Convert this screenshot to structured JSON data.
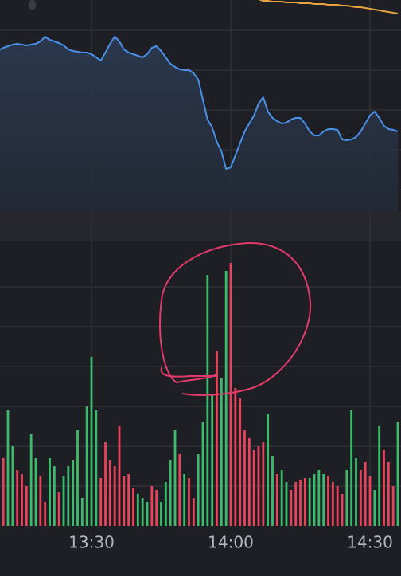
{
  "chart_data": [
    {
      "type": "line",
      "ylim": [
        0,
        265
      ],
      "area_fill": true,
      "series": [
        {
          "color": "#4a90e8",
          "values": [
            202,
            205,
            207,
            209,
            210,
            209,
            208,
            209,
            210,
            213,
            219,
            215,
            213,
            211,
            208,
            203,
            201,
            200,
            199,
            199,
            197,
            193,
            189,
            199,
            210,
            219,
            213,
            203,
            199,
            197,
            195,
            193,
            197,
            205,
            207,
            201,
            193,
            185,
            181,
            178,
            177,
            177,
            173,
            165,
            140,
            115,
            105,
            87,
            75,
            53,
            55,
            70,
            85,
            100,
            110,
            120,
            135,
            143,
            125,
            117,
            113,
            110,
            111,
            115,
            117,
            117,
            110,
            100,
            95,
            95,
            100,
            103,
            103,
            102,
            90,
            89,
            90,
            93,
            100,
            110,
            120,
            125,
            117,
            107,
            103,
            102,
            100
          ]
        },
        {
          "color": "#e8a33c",
          "values": [
            null,
            null,
            null,
            null,
            null,
            null,
            null,
            null,
            null,
            null,
            null,
            null,
            null,
            null,
            null,
            null,
            null,
            null,
            null,
            null,
            null,
            null,
            null,
            null,
            null,
            null,
            null,
            null,
            null,
            null,
            null,
            null,
            null,
            null,
            null,
            null,
            null,
            null,
            null,
            null,
            null,
            null,
            null,
            null,
            null,
            null,
            null,
            null,
            null,
            null,
            null,
            null,
            null,
            null,
            null,
            null,
            266,
            264,
            264,
            263,
            263,
            263,
            262,
            262,
            262,
            261,
            261,
            261,
            260,
            260,
            260,
            259,
            259,
            259,
            258,
            258,
            257,
            256,
            256,
            255,
            254,
            253,
            252,
            251,
            250,
            249,
            248
          ]
        }
      ]
    },
    {
      "type": "bar",
      "ylim": [
        0,
        350
      ],
      "categories": [
        null,
        null,
        null,
        null,
        null,
        null,
        null,
        null,
        null,
        null,
        null,
        null,
        null,
        null,
        null,
        null,
        null,
        null,
        null,
        null,
        "13:30",
        null,
        null,
        null,
        null,
        null,
        null,
        null,
        null,
        null,
        null,
        null,
        null,
        null,
        null,
        null,
        null,
        null,
        null,
        null,
        null,
        null,
        null,
        null,
        null,
        null,
        null,
        null,
        null,
        null,
        "14:00",
        null,
        null,
        null,
        null,
        null,
        null,
        null,
        null,
        null,
        null,
        null,
        null,
        null,
        null,
        null,
        null,
        null,
        null,
        null,
        null,
        null,
        null,
        null,
        null,
        null,
        null,
        null,
        null,
        null,
        "14:30",
        null,
        null,
        null,
        null,
        null,
        null
      ],
      "values": [
        null,
        85,
        145,
        100,
        70,
        65,
        50,
        115,
        85,
        62,
        30,
        85,
        75,
        42,
        62,
        75,
        82,
        120,
        35,
        150,
        212,
        145,
        60,
        105,
        82,
        75,
        125,
        62,
        65,
        48,
        40,
        35,
        30,
        50,
        45,
        30,
        55,
        82,
        120,
        90,
        65,
        60,
        35,
        90,
        130,
        315,
        165,
        220,
        185,
        320,
        330,
        173,
        160,
        120,
        110,
        95,
        100,
        105,
        140,
        88,
        65,
        70,
        55,
        45,
        55,
        58,
        60,
        60,
        65,
        70,
        65,
        63,
        55,
        50,
        40,
        70,
        145,
        85,
        70,
        80,
        62,
        45,
        125,
        95,
        80,
        50,
        130
      ],
      "bar_colors": [
        null,
        "#e8435a",
        "#3dbb6c",
        "#3dbb6c",
        "#e8435a",
        "#e8435a",
        "#e8435a",
        "#3dbb6c",
        "#3dbb6c",
        "#e8435a",
        "#e8435a",
        "#3dbb6c",
        "#3dbb6c",
        "#e8435a",
        "#3dbb6c",
        "#3dbb6c",
        "#3dbb6c",
        "#3dbb6c",
        "#3dbb6c",
        "#3dbb6c",
        "#3dbb6c",
        "#3dbb6c",
        "#e8435a",
        "#e8435a",
        "#e8435a",
        "#e8435a",
        "#e8435a",
        "#e8435a",
        "#e8435a",
        "#e8435a",
        "#3dbb6c",
        "#3dbb6c",
        "#3dbb6c",
        "#e8435a",
        "#e8435a",
        "#3dbb6c",
        "#3dbb6c",
        "#3dbb6c",
        "#3dbb6c",
        "#e8435a",
        "#3dbb6c",
        "#e8435a",
        "#e8435a",
        "#3dbb6c",
        "#3dbb6c",
        "#3dbb6c",
        "#3dbb6c",
        "#e8435a",
        "#3dbb6c",
        "#3dbb6c",
        "#e8435a",
        "#e8435a",
        "#e8435a",
        "#e8435a",
        "#e8435a",
        "#e8435a",
        "#e8435a",
        "#e8435a",
        "#3dbb6c",
        "#3dbb6c",
        "#e8435a",
        "#3dbb6c",
        "#3dbb6c",
        "#e8435a",
        "#e8435a",
        "#e8435a",
        "#e8435a",
        "#3dbb6c",
        "#3dbb6c",
        "#3dbb6c",
        "#3dbb6c",
        "#e8435a",
        "#e8435a",
        "#e8435a",
        "#e8435a",
        "#3dbb6c",
        "#3dbb6c",
        "#3dbb6c",
        "#e8435a",
        "#e8435a",
        "#e8435a",
        "#3dbb6c",
        "#3dbb6c",
        "#e8435a",
        "#e8435a",
        "#e8435a",
        "#3dbb6c"
      ]
    }
  ]
}
